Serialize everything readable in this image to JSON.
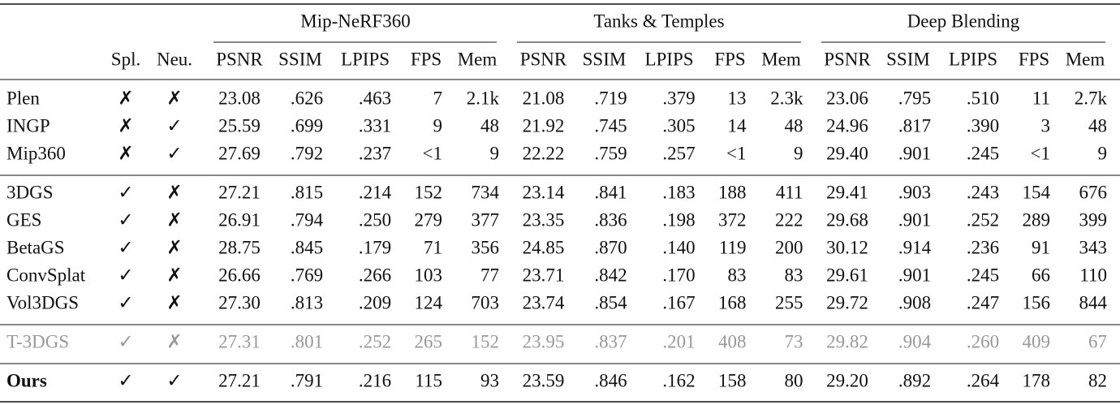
{
  "header": {
    "groups": [
      "Mip-NeRF360",
      "Tanks & Temples",
      "Deep Blending"
    ],
    "columns": [
      "Spl.",
      "Neu.",
      "PSNR",
      "SSIM",
      "LPIPS",
      "FPS",
      "Mem",
      "PSNR",
      "SSIM",
      "LPIPS",
      "FPS",
      "Mem",
      "PSNR",
      "SSIM",
      "LPIPS",
      "FPS",
      "Mem"
    ]
  },
  "table": {
    "row_groups": [
      [
        [
          "Plen",
          "✗",
          "✗",
          "23.08",
          ".626",
          ".463",
          "7",
          "2.1k",
          "21.08",
          ".719",
          ".379",
          "13",
          "2.3k",
          "23.06",
          ".795",
          ".510",
          "11",
          "2.7k"
        ],
        [
          "INGP",
          "✗",
          "✓",
          "25.59",
          ".699",
          ".331",
          "9",
          "48",
          "21.92",
          ".745",
          ".305",
          "14",
          "48",
          "24.96",
          ".817",
          ".390",
          "3",
          "48"
        ],
        [
          "Mip360",
          "✗",
          "✓",
          "27.69",
          ".792",
          ".237",
          "<1",
          "9",
          "22.22",
          ".759",
          ".257",
          "<1",
          "9",
          "29.40",
          ".901",
          ".245",
          "<1",
          "9"
        ]
      ],
      [
        [
          "3DGS",
          "✓",
          "✗",
          "27.21",
          ".815",
          ".214",
          "152",
          "734",
          "23.14",
          ".841",
          ".183",
          "188",
          "411",
          "29.41",
          ".903",
          ".243",
          "154",
          "676"
        ],
        [
          "GES",
          "✓",
          "✗",
          "26.91",
          ".794",
          ".250",
          "279",
          "377",
          "23.35",
          ".836",
          ".198",
          "372",
          "222",
          "29.68",
          ".901",
          ".252",
          "289",
          "399"
        ],
        [
          "BetaGS",
          "✓",
          "✗",
          "28.75",
          ".845",
          ".179",
          "71",
          "356",
          "24.85",
          ".870",
          ".140",
          "119",
          "200",
          "30.12",
          ".914",
          ".236",
          "91",
          "343"
        ],
        [
          "ConvSplat",
          "✓",
          "✗",
          "26.66",
          ".769",
          ".266",
          "103",
          "77",
          "23.71",
          ".842",
          ".170",
          "83",
          "83",
          "29.61",
          ".901",
          ".245",
          "66",
          "110"
        ],
        [
          "Vol3DGS",
          "✓",
          "✗",
          "27.30",
          ".813",
          ".209",
          "124",
          "703",
          "23.74",
          ".854",
          ".167",
          "168",
          "255",
          "29.72",
          ".908",
          ".247",
          "156",
          "844"
        ]
      ],
      [
        [
          "T-3DGS",
          "✓",
          "✗",
          "27.31",
          ".801",
          ".252",
          "265",
          "152",
          "23.95",
          ".837",
          ".201",
          "408",
          "73",
          "29.82",
          ".904",
          ".260",
          "409",
          "67"
        ]
      ],
      [
        [
          "Ours",
          "✓",
          "✓",
          "27.21",
          ".791",
          ".216",
          "115",
          "93",
          "23.59",
          ".846",
          ".162",
          "158",
          "80",
          "29.20",
          ".892",
          ".264",
          "178",
          "82"
        ]
      ]
    ]
  }
}
